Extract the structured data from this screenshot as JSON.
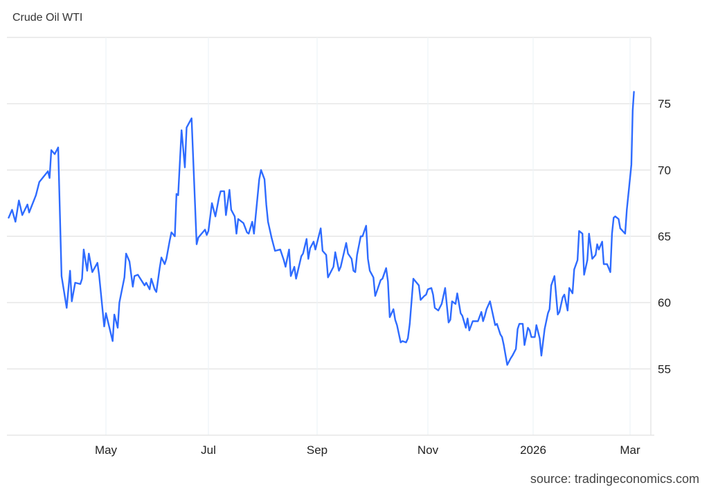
{
  "chart_data": {
    "type": "line",
    "title": "Crude Oil WTI",
    "source": "source: tradingeconomics.com",
    "xlabel": "",
    "ylabel": "",
    "xlim": [
      "2025-03-04",
      "2026-03-17"
    ],
    "ylim": [
      50,
      80
    ],
    "grid": true,
    "yaxis_side": "right",
    "line_color": "#2e6bff",
    "x_ticks": [
      {
        "date": "2025-05-01",
        "label": "May"
      },
      {
        "date": "2025-07-01",
        "label": "Jul"
      },
      {
        "date": "2025-09-01",
        "label": "Sep"
      },
      {
        "date": "2025-11-01",
        "label": "Nov"
      },
      {
        "date": "2026-01-01",
        "label": "2026"
      },
      {
        "date": "2026-03-01",
        "label": "Mar"
      }
    ],
    "y_ticks": [
      {
        "value": 55,
        "label": "55"
      },
      {
        "value": 60,
        "label": "60"
      },
      {
        "value": 65,
        "label": "65"
      },
      {
        "value": 70,
        "label": "70"
      },
      {
        "value": 75,
        "label": "75"
      }
    ],
    "series": [
      {
        "points": [
          [
            "2025-03-05",
            66.4
          ],
          [
            "2025-03-07",
            67.0
          ],
          [
            "2025-03-09",
            66.1
          ],
          [
            "2025-03-11",
            67.7
          ],
          [
            "2025-03-13",
            66.6
          ],
          [
            "2025-03-16",
            67.4
          ],
          [
            "2025-03-17",
            66.8
          ],
          [
            "2025-03-21",
            68.1
          ],
          [
            "2025-03-23",
            69.1
          ],
          [
            "2025-03-28",
            69.9
          ],
          [
            "2025-03-29",
            69.4
          ],
          [
            "2025-03-30",
            71.5
          ],
          [
            "2025-04-01",
            71.2
          ],
          [
            "2025-04-03",
            71.7
          ],
          [
            "2025-04-05",
            62.0
          ],
          [
            "2025-04-08",
            59.6
          ],
          [
            "2025-04-10",
            62.4
          ],
          [
            "2025-04-11",
            60.1
          ],
          [
            "2025-04-13",
            61.5
          ],
          [
            "2025-04-16",
            61.4
          ],
          [
            "2025-04-17",
            61.8
          ],
          [
            "2025-04-18",
            64.0
          ],
          [
            "2025-04-20",
            62.4
          ],
          [
            "2025-04-21",
            63.7
          ],
          [
            "2025-04-23",
            62.3
          ],
          [
            "2025-04-26",
            63.0
          ],
          [
            "2025-04-27",
            62.1
          ],
          [
            "2025-04-30",
            58.2
          ],
          [
            "2025-05-01",
            59.2
          ],
          [
            "2025-05-05",
            57.1
          ],
          [
            "2025-05-06",
            59.1
          ],
          [
            "2025-05-08",
            58.1
          ],
          [
            "2025-05-09",
            60.0
          ],
          [
            "2025-05-12",
            61.9
          ],
          [
            "2025-05-13",
            63.7
          ],
          [
            "2025-05-15",
            63.1
          ],
          [
            "2025-05-17",
            61.2
          ],
          [
            "2025-05-18",
            62.0
          ],
          [
            "2025-05-20",
            62.1
          ],
          [
            "2025-05-24",
            61.3
          ],
          [
            "2025-05-25",
            61.5
          ],
          [
            "2025-05-27",
            61.0
          ],
          [
            "2025-05-28",
            61.8
          ],
          [
            "2025-05-30",
            61.0
          ],
          [
            "2025-05-31",
            60.8
          ],
          [
            "2025-06-02",
            62.6
          ],
          [
            "2025-06-03",
            63.4
          ],
          [
            "2025-06-05",
            62.9
          ],
          [
            "2025-06-06",
            63.3
          ],
          [
            "2025-06-08",
            64.7
          ],
          [
            "2025-06-09",
            65.3
          ],
          [
            "2025-06-11",
            65.0
          ],
          [
            "2025-06-12",
            68.2
          ],
          [
            "2025-06-13",
            68.1
          ],
          [
            "2025-06-15",
            73.0
          ],
          [
            "2025-06-17",
            70.2
          ],
          [
            "2025-06-18",
            73.2
          ],
          [
            "2025-06-21",
            73.9
          ],
          [
            "2025-06-24",
            64.4
          ],
          [
            "2025-06-25",
            64.9
          ],
          [
            "2025-06-29",
            65.5
          ],
          [
            "2025-06-30",
            65.1
          ],
          [
            "2025-07-01",
            65.4
          ],
          [
            "2025-07-03",
            67.5
          ],
          [
            "2025-07-05",
            66.5
          ],
          [
            "2025-07-07",
            67.9
          ],
          [
            "2025-07-08",
            68.4
          ],
          [
            "2025-07-10",
            68.4
          ],
          [
            "2025-07-11",
            66.6
          ],
          [
            "2025-07-13",
            68.5
          ],
          [
            "2025-07-14",
            67.0
          ],
          [
            "2025-07-16",
            66.5
          ],
          [
            "2025-07-17",
            65.2
          ],
          [
            "2025-07-18",
            66.3
          ],
          [
            "2025-07-21",
            66.0
          ],
          [
            "2025-07-23",
            65.3
          ],
          [
            "2025-07-24",
            65.2
          ],
          [
            "2025-07-26",
            66.1
          ],
          [
            "2025-07-27",
            65.2
          ],
          [
            "2025-07-28",
            66.6
          ],
          [
            "2025-07-30",
            69.3
          ],
          [
            "2025-07-31",
            70.0
          ],
          [
            "2025-08-02",
            69.3
          ],
          [
            "2025-08-03",
            67.4
          ],
          [
            "2025-08-04",
            66.1
          ],
          [
            "2025-08-06",
            64.9
          ],
          [
            "2025-08-08",
            63.9
          ],
          [
            "2025-08-11",
            64.0
          ],
          [
            "2025-08-13",
            63.2
          ],
          [
            "2025-08-14",
            62.7
          ],
          [
            "2025-08-16",
            64.0
          ],
          [
            "2025-08-17",
            62.0
          ],
          [
            "2025-08-19",
            62.7
          ],
          [
            "2025-08-20",
            61.8
          ],
          [
            "2025-08-23",
            63.5
          ],
          [
            "2025-08-24",
            63.7
          ],
          [
            "2025-08-26",
            64.8
          ],
          [
            "2025-08-27",
            63.3
          ],
          [
            "2025-08-28",
            64.1
          ],
          [
            "2025-08-30",
            64.6
          ],
          [
            "2025-08-31",
            64.0
          ],
          [
            "2025-09-03",
            65.6
          ],
          [
            "2025-09-04",
            63.9
          ],
          [
            "2025-09-06",
            63.6
          ],
          [
            "2025-09-07",
            61.9
          ],
          [
            "2025-09-10",
            62.7
          ],
          [
            "2025-09-11",
            63.8
          ],
          [
            "2025-09-13",
            62.4
          ],
          [
            "2025-09-14",
            62.7
          ],
          [
            "2025-09-15",
            63.3
          ],
          [
            "2025-09-17",
            64.5
          ],
          [
            "2025-09-18",
            63.7
          ],
          [
            "2025-09-20",
            63.3
          ],
          [
            "2025-09-21",
            62.4
          ],
          [
            "2025-09-22",
            62.3
          ],
          [
            "2025-09-23",
            63.6
          ],
          [
            "2025-09-25",
            65.0
          ],
          [
            "2025-09-26",
            65.0
          ],
          [
            "2025-09-28",
            65.8
          ],
          [
            "2025-09-29",
            63.3
          ],
          [
            "2025-09-30",
            62.4
          ],
          [
            "2025-10-02",
            61.9
          ],
          [
            "2025-10-03",
            60.5
          ],
          [
            "2025-10-04",
            60.9
          ],
          [
            "2025-10-06",
            61.7
          ],
          [
            "2025-10-07",
            61.8
          ],
          [
            "2025-10-09",
            62.6
          ],
          [
            "2025-10-10",
            61.6
          ],
          [
            "2025-10-11",
            58.9
          ],
          [
            "2025-10-13",
            59.5
          ],
          [
            "2025-10-14",
            58.7
          ],
          [
            "2025-10-15",
            58.3
          ],
          [
            "2025-10-17",
            57.0
          ],
          [
            "2025-10-18",
            57.1
          ],
          [
            "2025-10-20",
            57.0
          ],
          [
            "2025-10-21",
            57.3
          ],
          [
            "2025-10-22",
            58.4
          ],
          [
            "2025-10-24",
            61.8
          ],
          [
            "2025-10-27",
            61.3
          ],
          [
            "2025-10-28",
            60.2
          ],
          [
            "2025-10-30",
            60.5
          ],
          [
            "2025-10-31",
            60.6
          ],
          [
            "2025-11-01",
            61.0
          ],
          [
            "2025-11-03",
            61.1
          ],
          [
            "2025-11-04",
            60.6
          ],
          [
            "2025-11-05",
            59.6
          ],
          [
            "2025-11-07",
            59.4
          ],
          [
            "2025-11-09",
            59.9
          ],
          [
            "2025-11-11",
            61.1
          ],
          [
            "2025-11-13",
            58.5
          ],
          [
            "2025-11-14",
            58.7
          ],
          [
            "2025-11-15",
            60.1
          ],
          [
            "2025-11-17",
            59.9
          ],
          [
            "2025-11-18",
            60.7
          ],
          [
            "2025-11-20",
            59.2
          ],
          [
            "2025-11-21",
            59.0
          ],
          [
            "2025-11-23",
            58.1
          ],
          [
            "2025-11-24",
            58.8
          ],
          [
            "2025-11-25",
            57.9
          ],
          [
            "2025-11-27",
            58.6
          ],
          [
            "2025-11-29",
            58.6
          ],
          [
            "2025-11-30",
            58.6
          ],
          [
            "2025-12-02",
            59.3
          ],
          [
            "2025-12-03",
            58.6
          ],
          [
            "2025-12-04",
            59.0
          ],
          [
            "2025-12-05",
            59.5
          ],
          [
            "2025-12-07",
            60.1
          ],
          [
            "2025-12-09",
            58.9
          ],
          [
            "2025-12-10",
            58.3
          ],
          [
            "2025-12-11",
            58.4
          ],
          [
            "2025-12-13",
            57.6
          ],
          [
            "2025-12-14",
            57.4
          ],
          [
            "2025-12-15",
            56.8
          ],
          [
            "2025-12-17",
            55.3
          ],
          [
            "2025-12-19",
            55.8
          ],
          [
            "2025-12-20",
            56.0
          ],
          [
            "2025-12-22",
            56.5
          ],
          [
            "2025-12-23",
            58.0
          ],
          [
            "2025-12-24",
            58.4
          ],
          [
            "2025-12-26",
            58.4
          ],
          [
            "2025-12-27",
            56.8
          ],
          [
            "2025-12-29",
            58.1
          ],
          [
            "2025-12-30",
            57.9
          ],
          [
            "2025-12-31",
            57.4
          ],
          [
            "2026-01-02",
            57.4
          ],
          [
            "2026-01-03",
            58.3
          ],
          [
            "2026-01-05",
            57.3
          ],
          [
            "2026-01-06",
            56.0
          ],
          [
            "2026-01-08",
            58.0
          ],
          [
            "2026-01-10",
            59.2
          ],
          [
            "2026-01-11",
            59.5
          ],
          [
            "2026-01-12",
            61.3
          ],
          [
            "2026-01-14",
            62.0
          ],
          [
            "2026-01-16",
            59.1
          ],
          [
            "2026-01-17",
            59.3
          ],
          [
            "2026-01-19",
            60.4
          ],
          [
            "2026-01-20",
            60.6
          ],
          [
            "2026-01-22",
            59.4
          ],
          [
            "2026-01-23",
            61.1
          ],
          [
            "2026-01-25",
            60.7
          ],
          [
            "2026-01-26",
            62.5
          ],
          [
            "2026-01-28",
            63.2
          ],
          [
            "2026-01-29",
            65.4
          ],
          [
            "2026-01-31",
            65.2
          ],
          [
            "2026-02-01",
            62.1
          ],
          [
            "2026-02-03",
            63.2
          ],
          [
            "2026-02-04",
            65.2
          ],
          [
            "2026-02-06",
            63.3
          ],
          [
            "2026-02-08",
            63.6
          ],
          [
            "2026-02-09",
            64.4
          ],
          [
            "2026-02-10",
            64.0
          ],
          [
            "2026-02-12",
            64.6
          ],
          [
            "2026-02-13",
            62.9
          ],
          [
            "2026-02-15",
            62.9
          ],
          [
            "2026-02-17",
            62.3
          ],
          [
            "2026-02-18",
            65.2
          ],
          [
            "2026-02-19",
            66.4
          ],
          [
            "2026-02-20",
            66.5
          ],
          [
            "2026-02-22",
            66.3
          ],
          [
            "2026-02-23",
            65.6
          ],
          [
            "2026-02-26",
            65.2
          ],
          [
            "2026-02-27",
            67.0
          ],
          [
            "2026-03-02",
            70.4
          ],
          [
            "2026-03-03",
            74.5
          ],
          [
            "2026-03-04",
            75.9
          ]
        ]
      }
    ]
  }
}
